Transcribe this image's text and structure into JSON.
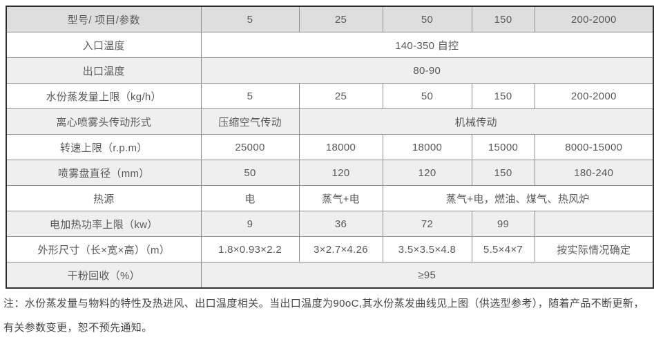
{
  "table": {
    "rows": [
      {
        "type": "header",
        "cells": [
          {
            "text": "型号/ 项目/参数"
          },
          {
            "text": "5"
          },
          {
            "text": "25"
          },
          {
            "text": "50"
          },
          {
            "text": "150"
          },
          {
            "text": "200-2000"
          }
        ]
      },
      {
        "cells": [
          {
            "text": "入口温度"
          },
          {
            "text": "140-350 自控",
            "colspan": 5
          }
        ]
      },
      {
        "cells": [
          {
            "text": "出口温度"
          },
          {
            "text": "80-90",
            "colspan": 5
          }
        ]
      },
      {
        "cells": [
          {
            "text": "水份蒸发量上限（kg/h）"
          },
          {
            "text": "5"
          },
          {
            "text": "25"
          },
          {
            "text": "50"
          },
          {
            "text": "150"
          },
          {
            "text": "200-2000"
          }
        ]
      },
      {
        "cells": [
          {
            "text": "离心喷雾头传动形式"
          },
          {
            "text": "压缩空气传动"
          },
          {
            "text": "机械传动",
            "colspan": 4
          }
        ]
      },
      {
        "cells": [
          {
            "text": "转速上限（r.p.m）"
          },
          {
            "text": "25000"
          },
          {
            "text": "18000"
          },
          {
            "text": "18000"
          },
          {
            "text": "15000"
          },
          {
            "text": "8000-15000"
          }
        ]
      },
      {
        "cells": [
          {
            "text": "喷雾盘直径（mm）"
          },
          {
            "text": "50"
          },
          {
            "text": "120"
          },
          {
            "text": "120"
          },
          {
            "text": "150"
          },
          {
            "text": "180-240"
          }
        ]
      },
      {
        "cells": [
          {
            "text": "热源"
          },
          {
            "text": "电"
          },
          {
            "text": "蒸气+电"
          },
          {
            "text": "蒸气+电，燃油、煤气、热风炉",
            "colspan": 3
          }
        ]
      },
      {
        "cells": [
          {
            "text": "电加热功率上限（kw）"
          },
          {
            "text": "9"
          },
          {
            "text": "36"
          },
          {
            "text": "72"
          },
          {
            "text": "99"
          },
          {
            "text": ""
          }
        ]
      },
      {
        "cells": [
          {
            "text": "外形尺寸（长×宽×高）（m）"
          },
          {
            "text": "1.8×0.93×2.2"
          },
          {
            "text": "3×2.7×4.26"
          },
          {
            "text": "3.5×3.5×4.8"
          },
          {
            "text": "5.5×4×7"
          },
          {
            "text": "按实际情况确定"
          }
        ]
      },
      {
        "cells": [
          {
            "text": "干粉回收（%）"
          },
          {
            "text": "≥95",
            "colspan": 5
          }
        ]
      }
    ]
  },
  "note": {
    "text": "注：水份蒸发量与物料的特性及热进风、出口温度相关。当出口温度为90oC,其水份蒸发曲线见上图（供选型参考），随着产品不断更新，有关参数变更，恕不预先通知。"
  },
  "colors": {
    "outer_border": "#2f2f2f",
    "inner_border": "#8f8f8f",
    "header_bg": "#dedede",
    "stripe_bg": "#efefef",
    "cell_text": "#595959",
    "note_text": "#454545"
  }
}
